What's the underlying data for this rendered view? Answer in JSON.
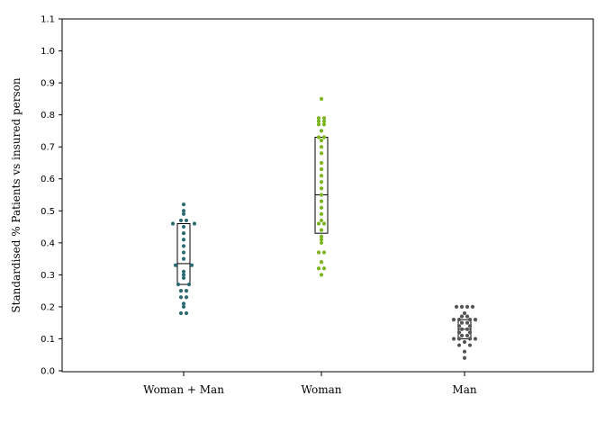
{
  "chart_data": {
    "type": "scatter",
    "title": "",
    "xlabel": "",
    "ylabel": "Standardised % Patients vs insured person",
    "ylim": [
      0,
      1.1
    ],
    "yticks": [
      "0.0",
      "0.1",
      "0.2",
      "0.3",
      "0.4",
      "0.5",
      "0.6",
      "0.7",
      "0.8",
      "0.9",
      "1.0",
      "1.1"
    ],
    "categories": [
      "Woman + Man",
      "Woman",
      "Man"
    ],
    "grid": false,
    "legend": "none",
    "series": [
      {
        "category": "Woman + Man",
        "color": "#2c6b73",
        "box": {
          "q1": 0.27,
          "median": 0.335,
          "q3": 0.46
        },
        "points": [
          {
            "value": 0.52,
            "jitter": 0
          },
          {
            "value": 0.5,
            "jitter": 0
          },
          {
            "value": 0.49,
            "jitter": 0
          },
          {
            "value": 0.47,
            "jitter": -1
          },
          {
            "value": 0.47,
            "jitter": 1
          },
          {
            "value": 0.46,
            "jitter": -4
          },
          {
            "value": 0.46,
            "jitter": 4
          },
          {
            "value": 0.45,
            "jitter": 0
          },
          {
            "value": 0.43,
            "jitter": 0
          },
          {
            "value": 0.41,
            "jitter": 0
          },
          {
            "value": 0.39,
            "jitter": 0
          },
          {
            "value": 0.37,
            "jitter": 0
          },
          {
            "value": 0.35,
            "jitter": 0
          },
          {
            "value": 0.33,
            "jitter": -3
          },
          {
            "value": 0.33,
            "jitter": 3
          },
          {
            "value": 0.31,
            "jitter": 0
          },
          {
            "value": 0.3,
            "jitter": 0
          },
          {
            "value": 0.29,
            "jitter": 0
          },
          {
            "value": 0.27,
            "jitter": -2
          },
          {
            "value": 0.27,
            "jitter": 2
          },
          {
            "value": 0.25,
            "jitter": -1
          },
          {
            "value": 0.25,
            "jitter": 1
          },
          {
            "value": 0.23,
            "jitter": -1
          },
          {
            "value": 0.23,
            "jitter": 1
          },
          {
            "value": 0.21,
            "jitter": 0
          },
          {
            "value": 0.2,
            "jitter": 0
          },
          {
            "value": 0.18,
            "jitter": -1
          },
          {
            "value": 0.18,
            "jitter": 1
          }
        ]
      },
      {
        "category": "Woman",
        "color": "#7ab51d",
        "box": {
          "q1": 0.43,
          "median": 0.55,
          "q3": 0.73
        },
        "points": [
          {
            "value": 0.85,
            "jitter": 0
          },
          {
            "value": 0.79,
            "jitter": -1
          },
          {
            "value": 0.79,
            "jitter": 1
          },
          {
            "value": 0.78,
            "jitter": -1
          },
          {
            "value": 0.78,
            "jitter": 1
          },
          {
            "value": 0.77,
            "jitter": -1
          },
          {
            "value": 0.77,
            "jitter": 1
          },
          {
            "value": 0.75,
            "jitter": 0
          },
          {
            "value": 0.73,
            "jitter": -1
          },
          {
            "value": 0.73,
            "jitter": 1
          },
          {
            "value": 0.72,
            "jitter": 0
          },
          {
            "value": 0.7,
            "jitter": 0
          },
          {
            "value": 0.68,
            "jitter": 0
          },
          {
            "value": 0.65,
            "jitter": 0
          },
          {
            "value": 0.63,
            "jitter": 0
          },
          {
            "value": 0.61,
            "jitter": 0
          },
          {
            "value": 0.59,
            "jitter": 0
          },
          {
            "value": 0.57,
            "jitter": 0
          },
          {
            "value": 0.55,
            "jitter": 0
          },
          {
            "value": 0.53,
            "jitter": 0
          },
          {
            "value": 0.51,
            "jitter": 0
          },
          {
            "value": 0.49,
            "jitter": 0
          },
          {
            "value": 0.47,
            "jitter": 0
          },
          {
            "value": 0.46,
            "jitter": -1
          },
          {
            "value": 0.46,
            "jitter": 1
          },
          {
            "value": 0.44,
            "jitter": 0
          },
          {
            "value": 0.42,
            "jitter": 0
          },
          {
            "value": 0.41,
            "jitter": 0
          },
          {
            "value": 0.4,
            "jitter": 0
          },
          {
            "value": 0.37,
            "jitter": -1
          },
          {
            "value": 0.37,
            "jitter": 1
          },
          {
            "value": 0.34,
            "jitter": 0
          },
          {
            "value": 0.32,
            "jitter": -1
          },
          {
            "value": 0.32,
            "jitter": 1
          },
          {
            "value": 0.3,
            "jitter": 0
          }
        ]
      },
      {
        "category": "Man",
        "color": "#555555",
        "box": {
          "q1": 0.1,
          "median": 0.13,
          "q3": 0.16
        },
        "points": [
          {
            "value": 0.2,
            "jitter": -3
          },
          {
            "value": 0.2,
            "jitter": -1
          },
          {
            "value": 0.2,
            "jitter": 1
          },
          {
            "value": 0.2,
            "jitter": 3
          },
          {
            "value": 0.18,
            "jitter": 0
          },
          {
            "value": 0.17,
            "jitter": -1
          },
          {
            "value": 0.17,
            "jitter": 1
          },
          {
            "value": 0.16,
            "jitter": -4
          },
          {
            "value": 0.16,
            "jitter": -2
          },
          {
            "value": 0.16,
            "jitter": 2
          },
          {
            "value": 0.16,
            "jitter": 4
          },
          {
            "value": 0.15,
            "jitter": -1
          },
          {
            "value": 0.15,
            "jitter": 1
          },
          {
            "value": 0.14,
            "jitter": -2
          },
          {
            "value": 0.14,
            "jitter": 2
          },
          {
            "value": 0.13,
            "jitter": -1
          },
          {
            "value": 0.13,
            "jitter": 1
          },
          {
            "value": 0.12,
            "jitter": -2
          },
          {
            "value": 0.12,
            "jitter": 2
          },
          {
            "value": 0.11,
            "jitter": -1
          },
          {
            "value": 0.11,
            "jitter": 1
          },
          {
            "value": 0.1,
            "jitter": -4
          },
          {
            "value": 0.1,
            "jitter": -2
          },
          {
            "value": 0.1,
            "jitter": 2
          },
          {
            "value": 0.1,
            "jitter": 4
          },
          {
            "value": 0.09,
            "jitter": 0
          },
          {
            "value": 0.08,
            "jitter": -2
          },
          {
            "value": 0.08,
            "jitter": 2
          },
          {
            "value": 0.06,
            "jitter": 0
          },
          {
            "value": 0.04,
            "jitter": 0
          }
        ]
      }
    ]
  }
}
